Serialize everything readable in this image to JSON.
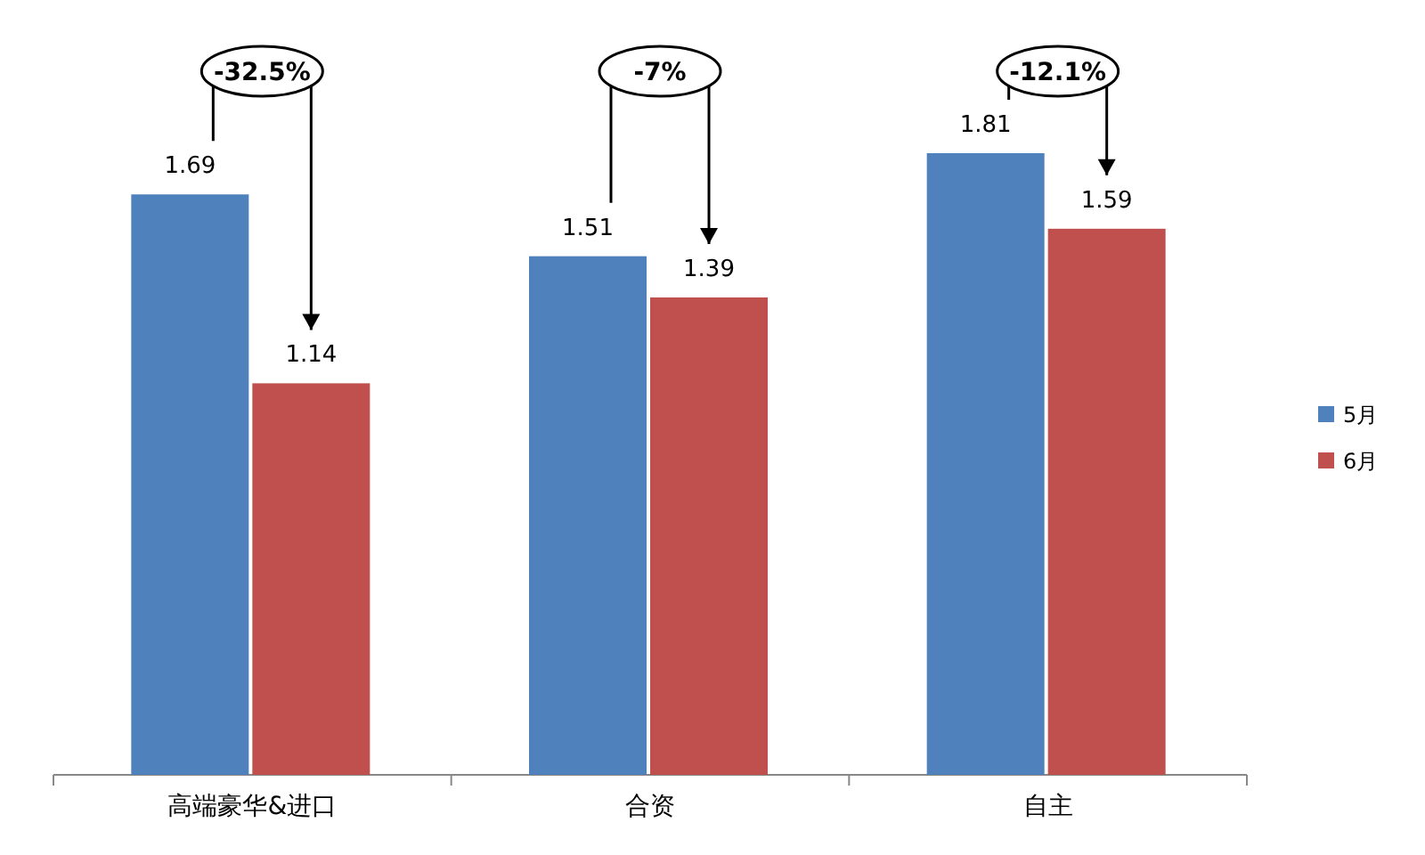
{
  "chart_data": {
    "type": "bar",
    "categories": [
      "高端豪华&进口",
      "合资",
      "自主"
    ],
    "series": [
      {
        "name": "5月",
        "color": "#4f81bd",
        "values": [
          1.69,
          1.51,
          1.81
        ]
      },
      {
        "name": "6月",
        "color": "#c0504d",
        "values": [
          1.14,
          1.39,
          1.59
        ]
      }
    ],
    "data_labels": true,
    "legend": "right",
    "annotations": [
      "-32.5%",
      "-7%",
      "-12.1%"
    ]
  }
}
